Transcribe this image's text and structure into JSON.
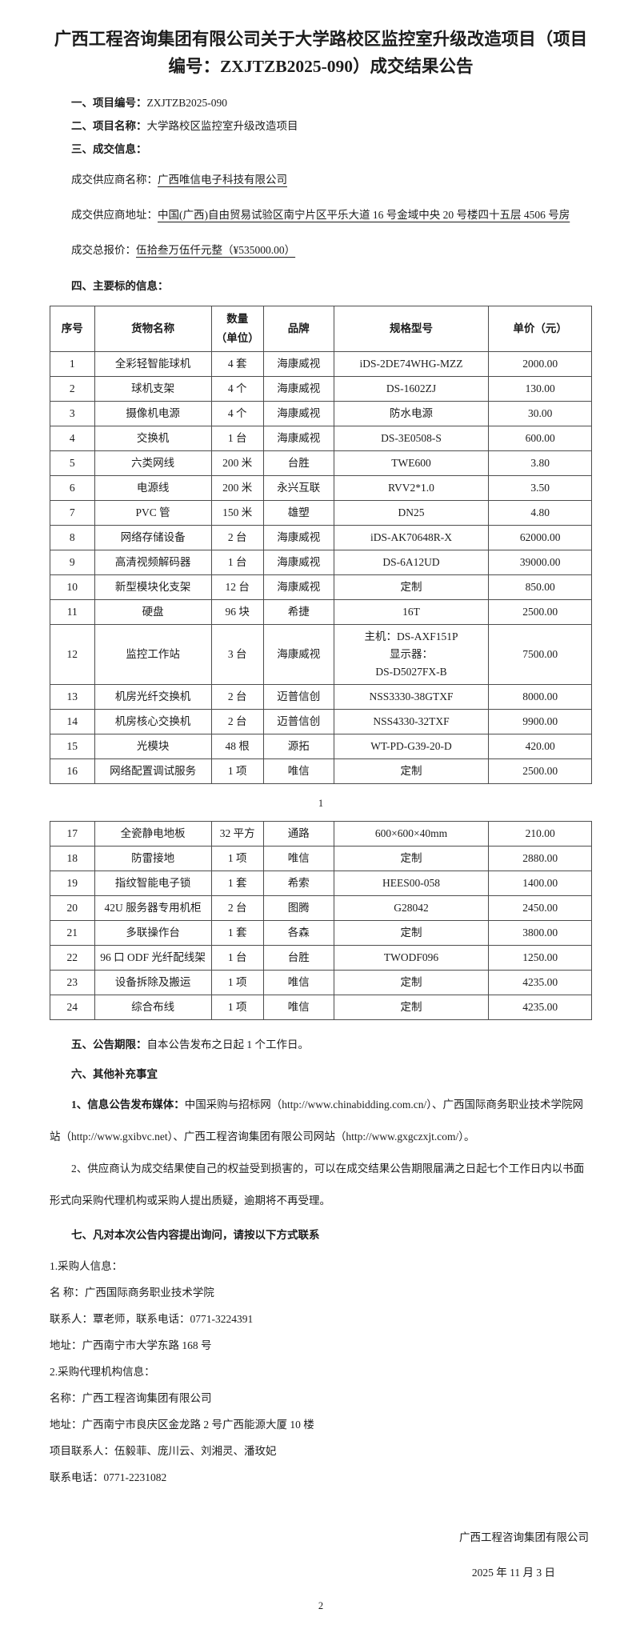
{
  "document": {
    "title": "广西工程咨询集团有限公司关于大学路校区监控室升级改造项目（项目编号：ZXJTZB2025-090）成交结果公告",
    "s1": {
      "label": "一、项目编号：",
      "value": "ZXJTZB2025-090"
    },
    "s2": {
      "label": "二、项目名称：",
      "value": "大学路校区监控室升级改造项目"
    },
    "s3": {
      "label": "三、成交信息："
    },
    "supplier_name": {
      "label": "成交供应商名称：",
      "value": "广西唯信电子科技有限公司"
    },
    "supplier_addr": {
      "label": "成交供应商地址：",
      "value": "中国(广西)自由贸易试验区南宁片区平乐大道 16 号金域中央 20 号楼四十五层 4506 号房"
    },
    "total_price": {
      "label": "成交总报价：",
      "value": "伍拾叁万伍仟元整（¥535000.00）"
    },
    "s4": {
      "label": "四、主要标的信息："
    },
    "s5": {
      "label": "五、公告期限：",
      "value": "自本公告发布之日起 1 个工作日。"
    },
    "s6": {
      "label": "六、其他补充事宜"
    },
    "note1": {
      "label": "1、信息公告发布媒体：",
      "value": "中国采购与招标网（http://www.chinabidding.com.cn/）、广西国际商务职业技术学院网站（http://www.gxibvc.net）、广西工程咨询集团有限公司网站（http://www.gxgczxjt.com/）。"
    },
    "note2": "2、供应商认为成交结果使自己的权益受到损害的，可以在成交结果公告期限届满之日起七个工作日内以书面形式向采购代理机构或采购人提出质疑，逾期将不再受理。",
    "s7": {
      "label": "七、凡对本次公告内容提出询问，请按以下方式联系"
    },
    "buyer": {
      "heading": "1.采购人信息：",
      "name": "名 称：广西国际商务职业技术学院",
      "contact": "联系人：覃老师，联系电话：0771-3224391",
      "address": "地址：广西南宁市大学东路 168 号"
    },
    "agency": {
      "heading": "2.采购代理机构信息：",
      "name": "名称：广西工程咨询集团有限公司",
      "address": "地址：广西南宁市良庆区金龙路 2 号广西能源大厦 10 楼",
      "contacts": "项目联系人：伍毅菲、庞川云、刘湘灵、潘玫妃",
      "phone": "联系电话：0771-2231082"
    },
    "signature": {
      "org": "广西工程咨询集团有限公司",
      "date": "2025 年 11 月 3 日"
    },
    "page_numbers": {
      "page1": "1",
      "page2": "2"
    }
  },
  "table": {
    "column_keys": [
      "no",
      "name",
      "qty",
      "brand",
      "model",
      "price"
    ],
    "headers": {
      "no": "序号",
      "name": "货物名称",
      "qty": "数量\n（单位）",
      "brand": "品牌",
      "model": "规格型号",
      "price": "单价（元）"
    },
    "rows_page1": [
      {
        "no": "1",
        "name": "全彩轻智能球机",
        "qty": "4 套",
        "brand": "海康威视",
        "model": "iDS-2DE74WHG-MZZ",
        "price": "2000.00"
      },
      {
        "no": "2",
        "name": "球机支架",
        "qty": "4 个",
        "brand": "海康威视",
        "model": "DS-1602ZJ",
        "price": "130.00"
      },
      {
        "no": "3",
        "name": "摄像机电源",
        "qty": "4 个",
        "brand": "海康威视",
        "model": "防水电源",
        "price": "30.00"
      },
      {
        "no": "4",
        "name": "交换机",
        "qty": "1 台",
        "brand": "海康威视",
        "model": "DS-3E0508-S",
        "price": "600.00"
      },
      {
        "no": "5",
        "name": "六类网线",
        "qty": "200 米",
        "brand": "台胜",
        "model": "TWE600",
        "price": "3.80"
      },
      {
        "no": "6",
        "name": "电源线",
        "qty": "200 米",
        "brand": "永兴互联",
        "model": "RVV2*1.0",
        "price": "3.50"
      },
      {
        "no": "7",
        "name": "PVC 管",
        "qty": "150 米",
        "brand": "雄塑",
        "model": "DN25",
        "price": "4.80"
      },
      {
        "no": "8",
        "name": "网络存储设备",
        "qty": "2 台",
        "brand": "海康威视",
        "model": "iDS-AK70648R-X",
        "price": "62000.00"
      },
      {
        "no": "9",
        "name": "高清视频解码器",
        "qty": "1 台",
        "brand": "海康威视",
        "model": "DS-6A12UD",
        "price": "39000.00"
      },
      {
        "no": "10",
        "name": "新型模块化支架",
        "qty": "12 台",
        "brand": "海康威视",
        "model": "定制",
        "price": "850.00"
      },
      {
        "no": "11",
        "name": "硬盘",
        "qty": "96 块",
        "brand": "希捷",
        "model": "16T",
        "price": "2500.00"
      },
      {
        "no": "12",
        "name": "监控工作站",
        "qty": "3 台",
        "brand": "海康威视",
        "model": "主机：DS-AXF151P\n显示器：\nDS-D5027FX-B",
        "price": "7500.00"
      },
      {
        "no": "13",
        "name": "机房光纤交换机",
        "qty": "2 台",
        "brand": "迈普信创",
        "model": "NSS3330-38GTXF",
        "price": "8000.00"
      },
      {
        "no": "14",
        "name": "机房核心交换机",
        "qty": "2 台",
        "brand": "迈普信创",
        "model": "NSS4330-32TXF",
        "price": "9900.00"
      },
      {
        "no": "15",
        "name": "光模块",
        "qty": "48 根",
        "brand": "源拓",
        "model": "WT-PD-G39-20-D",
        "price": "420.00"
      },
      {
        "no": "16",
        "name": "网络配置调试服务",
        "qty": "1 项",
        "brand": "唯信",
        "model": "定制",
        "price": "2500.00"
      }
    ],
    "rows_page2": [
      {
        "no": "17",
        "name": "全瓷静电地板",
        "qty": "32 平方",
        "brand": "通路",
        "model": "600×600×40mm",
        "price": "210.00"
      },
      {
        "no": "18",
        "name": "防雷接地",
        "qty": "1 项",
        "brand": "唯信",
        "model": "定制",
        "price": "2880.00"
      },
      {
        "no": "19",
        "name": "指纹智能电子锁",
        "qty": "1 套",
        "brand": "希索",
        "model": "HEES00-058",
        "price": "1400.00"
      },
      {
        "no": "20",
        "name": "42U 服务器专用机柜",
        "qty": "2 台",
        "brand": "图腾",
        "model": "G28042",
        "price": "2450.00"
      },
      {
        "no": "21",
        "name": "多联操作台",
        "qty": "1 套",
        "brand": "各森",
        "model": "定制",
        "price": "3800.00"
      },
      {
        "no": "22",
        "name": "96 口 ODF 光纤配线架",
        "qty": "1 台",
        "brand": "台胜",
        "model": "TWODF096",
        "price": "1250.00"
      },
      {
        "no": "23",
        "name": "设备拆除及搬运",
        "qty": "1 项",
        "brand": "唯信",
        "model": "定制",
        "price": "4235.00"
      },
      {
        "no": "24",
        "name": "综合布线",
        "qty": "1 项",
        "brand": "唯信",
        "model": "定制",
        "price": "4235.00"
      }
    ]
  }
}
